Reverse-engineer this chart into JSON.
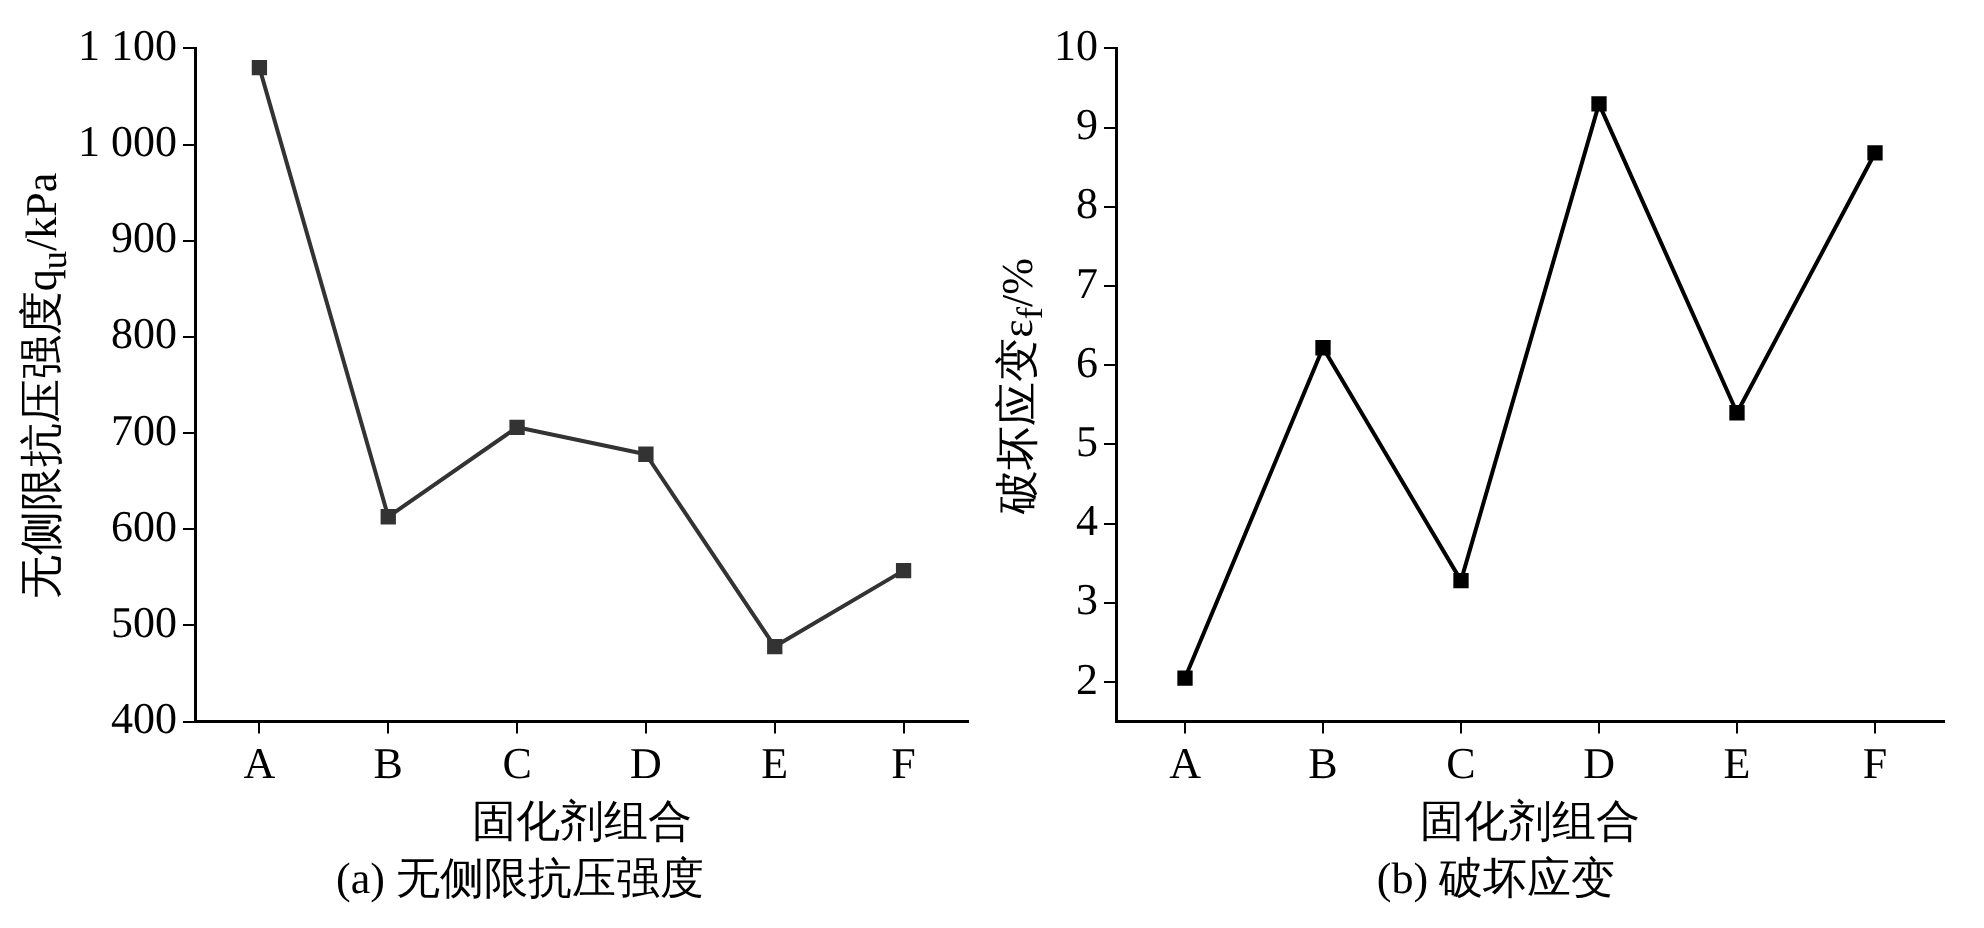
{
  "chart_data": [
    {
      "type": "line",
      "title": "(a) 无侧限抗压强度",
      "xlabel": "固化剂组合",
      "ylabel": "无侧限抗压强度q$_{u}$/kPa",
      "categories": [
        "A",
        "B",
        "C",
        "D",
        "E",
        "F"
      ],
      "series": [
        {
          "color": "#333333",
          "values": [
            1080,
            613,
            706,
            678,
            478,
            557
          ]
        }
      ],
      "ylim": [
        400,
        1100
      ],
      "yticks": [
        400,
        500,
        600,
        700,
        800,
        900,
        {
          "value": 1000,
          "label": "1 000"
        },
        {
          "value": 1100,
          "label": "1 100"
        }
      ],
      "marker": "square",
      "grid": false,
      "legend": false
    },
    {
      "type": "line",
      "title": "(b) 破坏应变",
      "xlabel": "固化剂组合",
      "ylabel": "破坏应变ε$_{f}$/%",
      "categories": [
        "A",
        "B",
        "C",
        "D",
        "E",
        "F"
      ],
      "series": [
        {
          "color": "#000000",
          "values": [
            2.05,
            6.22,
            3.28,
            9.3,
            5.4,
            8.68
          ]
        }
      ],
      "ylim": [
        1.5,
        10
      ],
      "yticks": [
        2,
        3,
        4,
        5,
        6,
        7,
        8,
        9,
        10
      ],
      "marker": "square",
      "grid": false,
      "legend": false
    }
  ]
}
